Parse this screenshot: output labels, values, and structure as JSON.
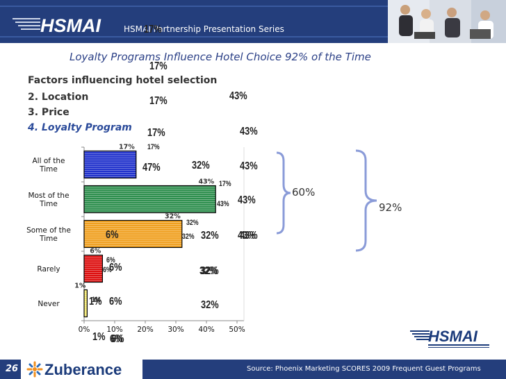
{
  "header": {
    "logo_text": "HSMAI",
    "series_text": "HSMAI Partnership Presentation Series"
  },
  "title": "Loyalty Programs Influence Hotel Choice 92% of the Time",
  "factors": {
    "heading": "Factors influencing hotel selection",
    "items": [
      "2.  Location",
      "3.  Price",
      "4.  Loyalty Program"
    ]
  },
  "chart_data": {
    "type": "bar",
    "orientation": "horizontal",
    "categories": [
      "All of the Time",
      "Most of the Time",
      "Some of the Time",
      "Rarely",
      "Never"
    ],
    "values": [
      17,
      43,
      32,
      6,
      1
    ],
    "value_labels": [
      "17%",
      "43%",
      "32%",
      "6%",
      "1%"
    ],
    "bar_colors": [
      "#2233cc",
      "#2f8f4f",
      "#f0a020",
      "#dd1111",
      "#f5ea70"
    ],
    "xlim": [
      0,
      50
    ],
    "xticks": [
      "0%",
      "10%",
      "20%",
      "30%",
      "40%",
      "50%"
    ],
    "grid": false,
    "legend": "none"
  },
  "ghost_labels": [
    "17%",
    "17%",
    "17%",
    "17%",
    "17%",
    "47%",
    "32%",
    "43%",
    "43%",
    "43%",
    "43%",
    "43%",
    "32%",
    "6%",
    "32%",
    "43%",
    "6%",
    "6%",
    "32%",
    "1%",
    "6%",
    "32%",
    "1%",
    "6%",
    "17%",
    "43%",
    "32%",
    "32%",
    "6%",
    "6%",
    "1%"
  ],
  "brackets": {
    "left_label": "60%",
    "right_label": "92%"
  },
  "footer": {
    "page_number": "26",
    "brand": "Zuberance",
    "source": "Source: Phoenix Marketing SCORES 2009 Frequent Guest Programs",
    "logo_text": "HSMAI"
  },
  "colors": {
    "header": "#243e7c",
    "title": "#2a3f86",
    "highlight": "#2a4a9a"
  }
}
